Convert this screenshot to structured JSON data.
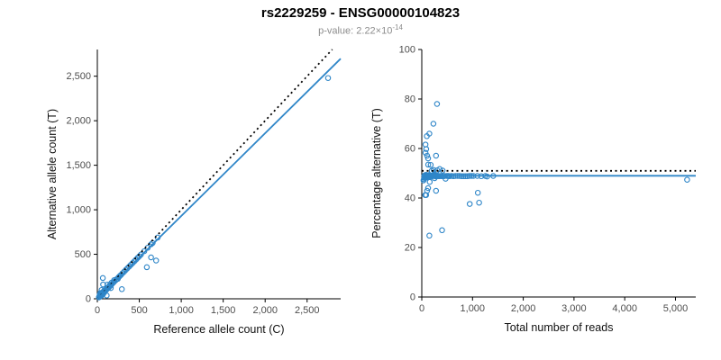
{
  "page": {
    "title": "rs2229259 - ENSG00000104823",
    "subtitle_prefix": "p-value: 2.22×10",
    "subtitle_exponent": "-14"
  },
  "colors": {
    "accent_blue": "#2f86c8",
    "reference_black": "#000000",
    "tick_gray": "#4d4d4d"
  },
  "chart_data": [
    {
      "type": "scatter",
      "name": "allele-counts",
      "xlabel": "Reference allele count (C)",
      "ylabel": "Alternative allele count (T)",
      "xlim": [
        0,
        2900
      ],
      "ylim": [
        0,
        2800
      ],
      "xticks": [
        0,
        500,
        1000,
        1500,
        2000,
        2500
      ],
      "yticks": [
        0,
        500,
        1000,
        1500,
        2000,
        2500
      ],
      "grid": false,
      "point_color": "#2f86c8",
      "points": [
        [
          18,
          16
        ],
        [
          22,
          20
        ],
        [
          25,
          24
        ],
        [
          28,
          26
        ],
        [
          30,
          28
        ],
        [
          32,
          31
        ],
        [
          35,
          33
        ],
        [
          38,
          36
        ],
        [
          40,
          38
        ],
        [
          42,
          41
        ],
        [
          45,
          42
        ],
        [
          48,
          46
        ],
        [
          50,
          47
        ],
        [
          52,
          50
        ],
        [
          55,
          52
        ],
        [
          58,
          56
        ],
        [
          60,
          57
        ],
        [
          63,
          61
        ],
        [
          59,
          68
        ],
        [
          68,
          65
        ],
        [
          70,
          67
        ],
        [
          73,
          70
        ],
        [
          75,
          73
        ],
        [
          78,
          74
        ],
        [
          84,
          73
        ],
        [
          85,
          81
        ],
        [
          82,
          94
        ],
        [
          95,
          90
        ],
        [
          96,
          100
        ],
        [
          105,
          100
        ],
        [
          110,
          106
        ],
        [
          115,
          110
        ],
        [
          114,
          120
        ],
        [
          125,
          120
        ],
        [
          132,
          122
        ],
        [
          135,
          130
        ],
        [
          140,
          133
        ],
        [
          145,
          139
        ],
        [
          150,
          143
        ],
        [
          148,
          155
        ],
        [
          160,
          153
        ],
        [
          165,
          158
        ],
        [
          170,
          163
        ],
        [
          175,
          167
        ],
        [
          170,
          182
        ],
        [
          190,
          182
        ],
        [
          200,
          191
        ],
        [
          201,
          210
        ],
        [
          220,
          210
        ],
        [
          230,
          220
        ],
        [
          245,
          224
        ],
        [
          250,
          239
        ],
        [
          260,
          249
        ],
        [
          270,
          258
        ],
        [
          280,
          267
        ],
        [
          300,
          287
        ],
        [
          320,
          305
        ],
        [
          340,
          325
        ],
        [
          360,
          344
        ],
        [
          380,
          363
        ],
        [
          400,
          382
        ],
        [
          420,
          401
        ],
        [
          440,
          420
        ],
        [
          460,
          439
        ],
        [
          480,
          459
        ],
        [
          500,
          478
        ],
        [
          520,
          497
        ],
        [
          560,
          535
        ],
        [
          600,
          573
        ],
        [
          640,
          612
        ],
        [
          660,
          627
        ],
        [
          720,
          688
        ],
        [
          30,
          42
        ],
        [
          28,
          45
        ],
        [
          40,
          28
        ],
        [
          50,
          35
        ],
        [
          35,
          52
        ],
        [
          45,
          60
        ],
        [
          60,
          45
        ],
        [
          55,
          70
        ],
        [
          70,
          55
        ],
        [
          35,
          65
        ],
        [
          51,
          99
        ],
        [
          112,
          37
        ],
        [
          69,
          161
        ],
        [
          66,
          234
        ],
        [
          292,
          108
        ],
        [
          160,
          120
        ],
        [
          120,
          160
        ],
        [
          590,
          355
        ],
        [
          640,
          465
        ],
        [
          700,
          430
        ],
        [
          2750,
          2480
        ]
      ],
      "lines": [
        {
          "name": "expected",
          "dash": "dotted",
          "color": "#000000",
          "points": [
            [
              0,
              0
            ],
            [
              2800,
              2800
            ]
          ]
        },
        {
          "name": "fit",
          "dash": "solid",
          "color": "#2f86c8",
          "points": [
            [
              0,
              0
            ],
            [
              2900,
              2697
            ]
          ]
        }
      ]
    },
    {
      "type": "scatter",
      "name": "percentage-alternative",
      "xlabel": "Total number of reads",
      "ylabel": "Percentage alternative (T)",
      "xlim": [
        0,
        5400
      ],
      "ylim": [
        0,
        100
      ],
      "xticks": [
        0,
        1000,
        2000,
        3000,
        4000,
        5000
      ],
      "yticks": [
        0,
        20,
        40,
        60,
        80,
        100
      ],
      "grid": false,
      "point_color": "#2f86c8",
      "points": [
        [
          34,
          47.1
        ],
        [
          42,
          47.6
        ],
        [
          49,
          49.0
        ],
        [
          54,
          48.1
        ],
        [
          58,
          48.3
        ],
        [
          63,
          49.2
        ],
        [
          68,
          48.5
        ],
        [
          74,
          48.6
        ],
        [
          78,
          48.7
        ],
        [
          83,
          49.4
        ],
        [
          87,
          48.3
        ],
        [
          94,
          48.9
        ],
        [
          97,
          48.5
        ],
        [
          102,
          49.0
        ],
        [
          107,
          48.6
        ],
        [
          114,
          49.1
        ],
        [
          117,
          48.7
        ],
        [
          124,
          49.2
        ],
        [
          127,
          53.5
        ],
        [
          133,
          48.9
        ],
        [
          137,
          48.9
        ],
        [
          143,
          49.0
        ],
        [
          148,
          49.3
        ],
        [
          152,
          48.7
        ],
        [
          157,
          46.5
        ],
        [
          166,
          48.8
        ],
        [
          176,
          53.4
        ],
        [
          185,
          48.6
        ],
        [
          196,
          51.0
        ],
        [
          205,
          48.8
        ],
        [
          216,
          49.1
        ],
        [
          225,
          48.9
        ],
        [
          234,
          51.3
        ],
        [
          245,
          49.0
        ],
        [
          254,
          48.0
        ],
        [
          265,
          49.1
        ],
        [
          273,
          48.7
        ],
        [
          284,
          48.9
        ],
        [
          293,
          48.8
        ],
        [
          303,
          51.2
        ],
        [
          313,
          48.9
        ],
        [
          323,
          48.9
        ],
        [
          333,
          48.9
        ],
        [
          342,
          48.8
        ],
        [
          352,
          51.7
        ],
        [
          372,
          48.9
        ],
        [
          391,
          48.8
        ],
        [
          411,
          51.1
        ],
        [
          430,
          48.8
        ],
        [
          450,
          48.9
        ],
        [
          469,
          47.8
        ],
        [
          489,
          48.9
        ],
        [
          509,
          48.9
        ],
        [
          528,
          48.9
        ],
        [
          547,
          48.8
        ],
        [
          587,
          48.9
        ],
        [
          625,
          48.8
        ],
        [
          665,
          48.9
        ],
        [
          704,
          48.9
        ],
        [
          743,
          48.9
        ],
        [
          782,
          48.8
        ],
        [
          821,
          48.8
        ],
        [
          860,
          48.8
        ],
        [
          899,
          48.8
        ],
        [
          939,
          48.9
        ],
        [
          978,
          48.9
        ],
        [
          1017,
          48.9
        ],
        [
          1095,
          48.9
        ],
        [
          1173,
          48.8
        ],
        [
          1252,
          48.9
        ],
        [
          1287,
          48.7
        ],
        [
          1408,
          48.9
        ],
        [
          72,
          58.3
        ],
        [
          73,
          61.6
        ],
        [
          68,
          41.2
        ],
        [
          85,
          41.2
        ],
        [
          87,
          59.8
        ],
        [
          105,
          57.1
        ],
        [
          105,
          42.9
        ],
        [
          125,
          56.0
        ],
        [
          125,
          44.0
        ],
        [
          100,
          65.0
        ],
        [
          150,
          66.0
        ],
        [
          149,
          24.8
        ],
        [
          230,
          70.0
        ],
        [
          300,
          78.0
        ],
        [
          400,
          27.0
        ],
        [
          280,
          42.9
        ],
        [
          280,
          57.1
        ],
        [
          945,
          37.6
        ],
        [
          1105,
          42.1
        ],
        [
          1130,
          38.1
        ],
        [
          5230,
          47.4
        ]
      ],
      "lines": [
        {
          "name": "expected",
          "dash": "dotted",
          "color": "#000000",
          "points": [
            [
              0,
              51
            ],
            [
              5400,
              51
            ]
          ]
        },
        {
          "name": "fit",
          "dash": "solid",
          "color": "#2f86c8",
          "points": [
            [
              0,
              49
            ],
            [
              5400,
              49
            ]
          ]
        }
      ]
    }
  ]
}
